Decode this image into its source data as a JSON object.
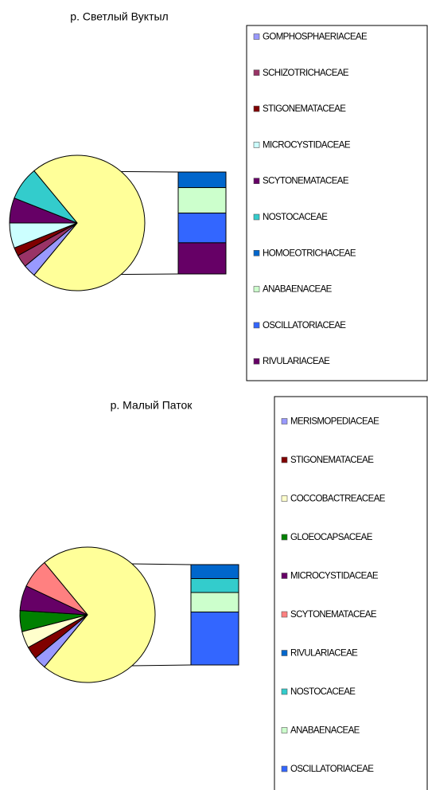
{
  "chart_data": [
    {
      "type": "pie-of-bar",
      "title": "р. Светлый Вуктыл",
      "other_color": "#ffff99",
      "pie": {
        "categories": [
          "GOMPHOSPHAERIACEAE",
          "SCHIZOTRICHACEAE",
          "STIGONEMATACEAE",
          "MICROCYSTIDACEAE",
          "SCYTONEMATACEAE",
          "NOSTOCACEAE"
        ],
        "values": [
          3,
          3,
          2,
          6,
          6,
          8
        ],
        "colors": [
          "#9999ff",
          "#993366",
          "#800000",
          "#ccffff",
          "#660066",
          "#33cccc"
        ]
      },
      "bar": {
        "categories": [
          "HOMOEOTRICHACEAE",
          "ANABAENACEAE",
          "OSCILLATORIACEAE",
          "RIVULARIACEAE"
        ],
        "values": [
          11,
          18,
          21,
          22
        ],
        "colors": [
          "#0066cc",
          "#ccffcc",
          "#3366ff",
          "#660066"
        ]
      }
    },
    {
      "type": "pie-of-bar",
      "title": "р. Малый Паток",
      "other_color": "#ffff99",
      "pie": {
        "categories": [
          "MERISMOPEDIACEAE",
          "STIGONEMATACEAE",
          "COCCOBACTREACEAE",
          "GLOEOCAPSACEAE",
          "MICROCYSTIDACEAE",
          "SCYTONEMATACEAE"
        ],
        "values": [
          3,
          3,
          4,
          5,
          6,
          7
        ],
        "colors": [
          "#9999ff",
          "#800000",
          "#ffffcc",
          "#008000",
          "#660066",
          "#ff8080"
        ]
      },
      "bar": {
        "categories": [
          "RIVULARIACEAE",
          "NOSTOCACEAE",
          "ANABAENACEAE",
          "OSCILLATORIACEAE"
        ],
        "values": [
          10,
          10,
          14,
          38
        ],
        "colors": [
          "#0066cc",
          "#33cccc",
          "#ccffcc",
          "#3366ff"
        ]
      }
    }
  ]
}
